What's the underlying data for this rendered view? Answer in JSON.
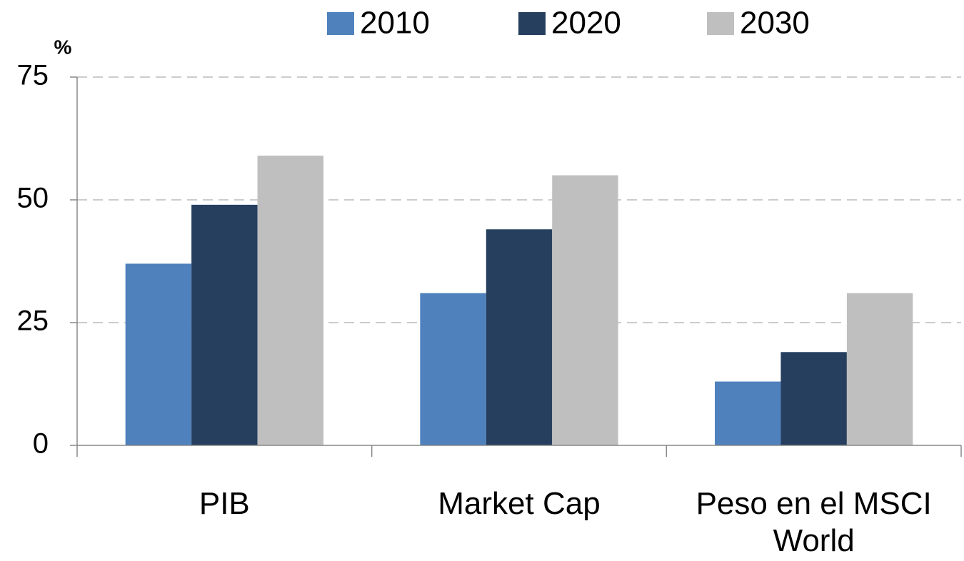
{
  "chart_data": {
    "type": "bar",
    "y_label": "%",
    "categories": [
      "PIB",
      "Market Cap",
      "Peso en el MSCI World"
    ],
    "series": [
      {
        "name": "2010",
        "color": "#4f81bd",
        "values": [
          37,
          31,
          13
        ]
      },
      {
        "name": "2020",
        "color": "#263f5f",
        "values": [
          49,
          44,
          19
        ]
      },
      {
        "name": "2030",
        "color": "#bfbfbf",
        "values": [
          59,
          55,
          31
        ]
      }
    ],
    "ylim": [
      0,
      75
    ],
    "yticks": [
      0,
      25,
      50,
      75
    ],
    "grid": true,
    "legend": "top"
  }
}
